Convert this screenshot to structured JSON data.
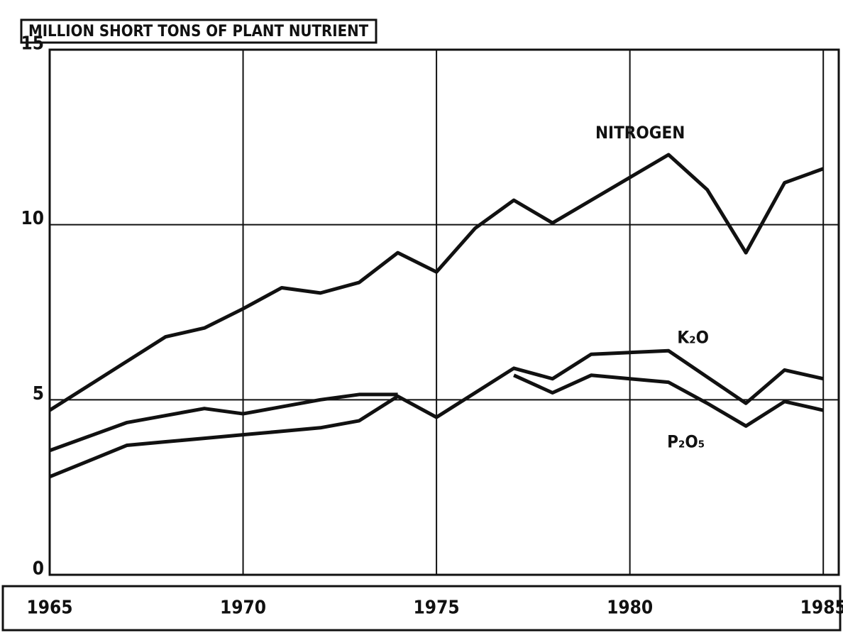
{
  "chart_data": {
    "type": "line",
    "title": "MILLION SHORT TONS OF PLANT NUTRIENT",
    "x": [
      1965,
      1966,
      1967,
      1968,
      1969,
      1970,
      1971,
      1972,
      1973,
      1974,
      1975,
      1976,
      1977,
      1978,
      1979,
      1980,
      1981,
      1982,
      1983,
      1984,
      1985
    ],
    "series": [
      {
        "name": "NITROGEN",
        "color": "#111111",
        "values": [
          4.7,
          5.4,
          6.1,
          6.8,
          7.05,
          7.6,
          8.2,
          8.05,
          8.35,
          9.2,
          8.65,
          9.9,
          10.7,
          10.05,
          10.7,
          11.35,
          12.0,
          11.0,
          9.2,
          11.2,
          11.6
        ]
      },
      {
        "name": "K₂O",
        "color": "#111111",
        "values": [
          2.8,
          3.25,
          3.7,
          3.8,
          3.9,
          4.0,
          4.1,
          4.2,
          4.4,
          5.1,
          4.5,
          5.2,
          5.9,
          5.6,
          6.3,
          6.35,
          6.4,
          5.65,
          4.9,
          5.85,
          5.6
        ]
      },
      {
        "name": "P₂O₅",
        "color": "#111111",
        "values": [
          3.55,
          3.95,
          4.35,
          4.55,
          4.75,
          4.6,
          4.8,
          5.0,
          5.15,
          5.15,
          null,
          null,
          5.7,
          5.2,
          5.7,
          5.6,
          5.5,
          4.9,
          4.25,
          4.95,
          4.7
        ]
      }
    ],
    "xlim": [
      1965,
      1985.4
    ],
    "xticks": [
      1965,
      1970,
      1975,
      1980,
      1985
    ],
    "ylim": [
      0,
      15
    ],
    "yticks": [
      0,
      5,
      10,
      15
    ],
    "grid": true
  }
}
